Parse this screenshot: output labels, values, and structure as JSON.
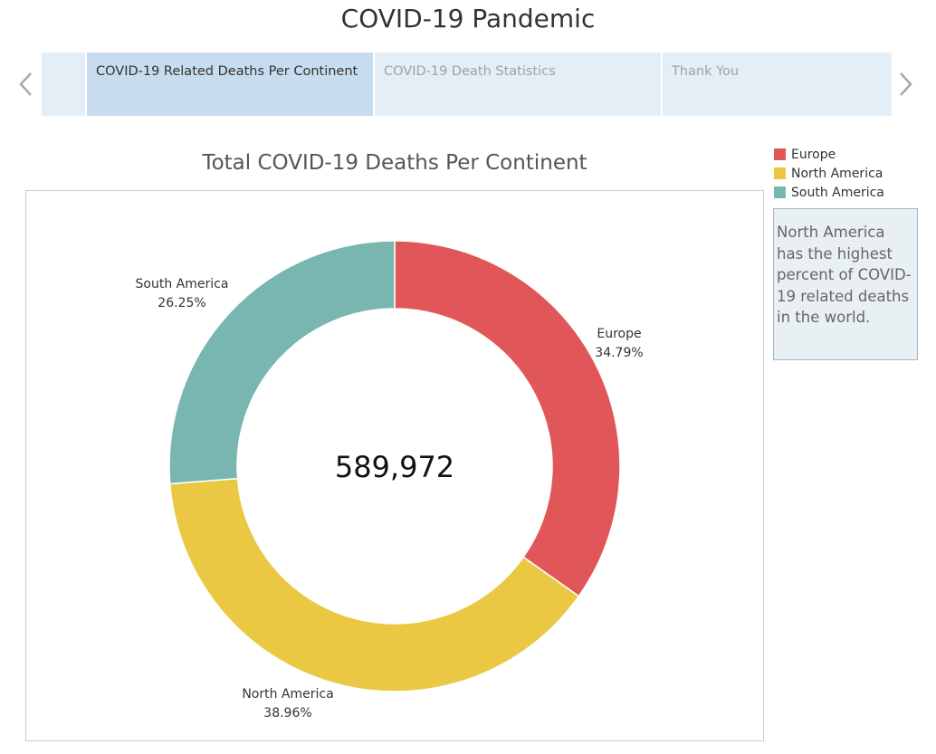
{
  "story": {
    "title": "COVID-19 Pandemic",
    "points": [
      {
        "label": "COVID-19 Related Deaths Per Continent",
        "active": true
      },
      {
        "label": "COVID-19 Death Statistics",
        "active": false
      },
      {
        "label": "Thank You",
        "active": false
      }
    ]
  },
  "icons": {
    "prev": "chevron-left-icon",
    "next": "chevron-right-icon"
  },
  "chart_data": {
    "type": "pie",
    "subtype": "donut",
    "title": "Total COVID-19 Deaths Per Continent",
    "center_label": "589,972",
    "slices": [
      {
        "label": "Europe",
        "percent": 34.79,
        "percent_label": "34.79%",
        "color": "#e15759"
      },
      {
        "label": "North America",
        "percent": 38.96,
        "percent_label": "38.96%",
        "color": "#ebc843"
      },
      {
        "label": "South America",
        "percent": 26.25,
        "percent_label": "26.25%",
        "color": "#79b6b0"
      }
    ],
    "legend_position": "top-right"
  },
  "legend": {
    "items": [
      {
        "label": "Europe",
        "color": "#e15759"
      },
      {
        "label": "North America",
        "color": "#ebc843"
      },
      {
        "label": "South America",
        "color": "#79b6b0"
      }
    ]
  },
  "caption": "North America has the highest percent of COVID-19 related deaths in the world."
}
